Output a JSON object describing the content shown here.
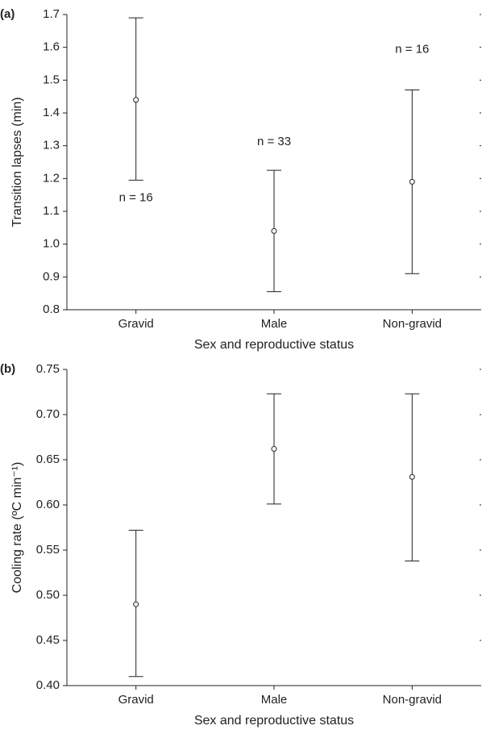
{
  "chart_data": [
    {
      "type": "errorbar",
      "panel_label": "(a)",
      "x_label": "Sex and reproductive status",
      "y_label": "Transition lapses (min)",
      "categories": [
        "Gravid",
        "Male",
        "Non-gravid"
      ],
      "values": [
        1.44,
        1.04,
        1.19
      ],
      "lower": [
        1.195,
        0.855,
        0.91
      ],
      "upper": [
        1.69,
        1.225,
        1.47
      ],
      "annotations": [
        "n = 16",
        "n = 33",
        "n = 16"
      ],
      "color": "#222222",
      "ylim": [
        0.8,
        1.7
      ],
      "yticks": [
        0.8,
        0.9,
        {
          "value": 1,
          "label": "1.0"
        },
        1.1,
        1.2,
        1.3,
        1.4,
        1.5,
        1.6,
        1.7
      ]
    },
    {
      "type": "errorbar",
      "panel_label": "(b)",
      "x_label": "Sex and reproductive status",
      "y_label": "Cooling rate (ºC min⁻¹)",
      "categories": [
        "Gravid",
        "Male",
        "Non-gravid"
      ],
      "values": [
        0.49,
        0.662,
        0.631
      ],
      "lower": [
        0.41,
        0.601,
        0.538
      ],
      "upper": [
        0.572,
        0.723,
        0.723
      ],
      "color": "#222222",
      "ylim": [
        0.4,
        0.75
      ],
      "yticks": [
        {
          "value": 0.4,
          "label": "0.40"
        },
        0.45,
        {
          "value": 0.5,
          "label": "0.50"
        },
        0.55,
        {
          "value": 0.6,
          "label": "0.60"
        },
        0.65,
        {
          "value": 0.7,
          "label": "0.70"
        },
        0.75
      ]
    }
  ]
}
